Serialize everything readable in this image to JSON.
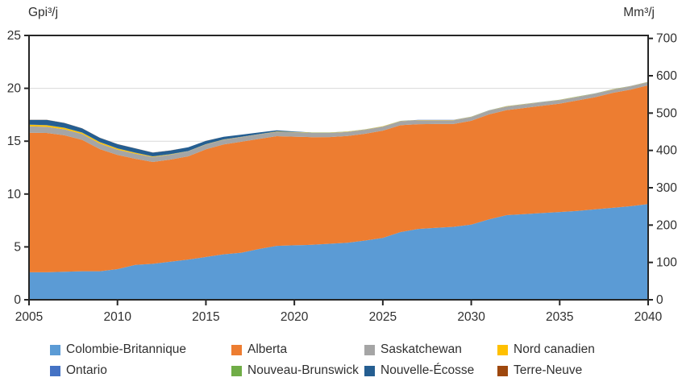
{
  "chart_data": {
    "type": "area",
    "stacked": true,
    "left_axis": {
      "label": "Gpi³/j",
      "min": 0,
      "max": 25,
      "ticks": [
        0,
        5,
        10,
        15,
        20,
        25
      ]
    },
    "right_axis": {
      "label": "Mm³/j",
      "min": 0,
      "ticks": [
        0,
        100,
        200,
        300,
        400,
        500,
        600,
        700
      ],
      "mm3_per_gpi3": 28.3168
    },
    "x": [
      2005,
      2006,
      2007,
      2008,
      2009,
      2010,
      2011,
      2012,
      2013,
      2014,
      2015,
      2016,
      2017,
      2018,
      2019,
      2020,
      2021,
      2022,
      2023,
      2024,
      2025,
      2026,
      2027,
      2028,
      2029,
      2030,
      2031,
      2032,
      2033,
      2034,
      2035,
      2036,
      2037,
      2038,
      2039,
      2040
    ],
    "x_ticks": [
      2005,
      2010,
      2015,
      2020,
      2025,
      2030,
      2035,
      2040
    ],
    "grid": "horizontal",
    "legend_position": "bottom",
    "legend_display_order": [
      0,
      4,
      1,
      5,
      2,
      6,
      3,
      7
    ],
    "series": [
      {
        "name": "Colombie-Britannique",
        "color": "#5B9BD5",
        "values": [
          2.6,
          2.6,
          2.65,
          2.7,
          2.7,
          2.9,
          3.3,
          3.4,
          3.6,
          3.8,
          4.05,
          4.3,
          4.45,
          4.8,
          5.1,
          5.15,
          5.2,
          5.3,
          5.4,
          5.6,
          5.85,
          6.4,
          6.7,
          6.8,
          6.9,
          7.1,
          7.6,
          8.0,
          8.1,
          8.2,
          8.3,
          8.4,
          8.55,
          8.7,
          8.85,
          9.05
        ]
      },
      {
        "name": "Alberta",
        "color": "#ED7D31",
        "values": [
          13.2,
          13.18,
          12.91,
          12.43,
          11.55,
          10.8,
          10.04,
          9.63,
          9.66,
          9.77,
          10.18,
          10.39,
          10.5,
          10.41,
          10.37,
          10.28,
          10.18,
          10.09,
          10.09,
          10.1,
          10.15,
          10.11,
          9.91,
          9.82,
          9.72,
          9.83,
          9.93,
          9.94,
          10.04,
          10.15,
          10.25,
          10.46,
          10.61,
          10.87,
          11.02,
          11.23
        ]
      },
      {
        "name": "Saskatchewan",
        "color": "#A5A5A5",
        "values": [
          0.6,
          0.58,
          0.56,
          0.55,
          0.53,
          0.5,
          0.48,
          0.47,
          0.46,
          0.46,
          0.45,
          0.44,
          0.43,
          0.42,
          0.41,
          0.4,
          0.4,
          0.39,
          0.39,
          0.38,
          0.38,
          0.37,
          0.37,
          0.36,
          0.36,
          0.35,
          0.35,
          0.34,
          0.34,
          0.33,
          0.33,
          0.32,
          0.32,
          0.31,
          0.31,
          0.3
        ]
      },
      {
        "name": "Nord canadien",
        "color": "#FFC000",
        "values": [
          0.15,
          0.14,
          0.13,
          0.12,
          0.12,
          0.1,
          0.08,
          0.05,
          0.03,
          0.02,
          0.02,
          0.02,
          0.02,
          0.02,
          0.02,
          0.02,
          0.02,
          0.02,
          0.02,
          0.02,
          0.02,
          0.02,
          0.02,
          0.02,
          0.02,
          0.02,
          0.02,
          0.02,
          0.02,
          0.02,
          0.02,
          0.02,
          0.02,
          0.02,
          0.02,
          0.02
        ]
      },
      {
        "name": "Ontario",
        "color": "#4472C4",
        "values": [
          0.01,
          0.01,
          0.01,
          0.01,
          0.01,
          0.01,
          0.01,
          0.01,
          0.01,
          0.01,
          0.01,
          0.01,
          0.01,
          0.01,
          0.01,
          0.01,
          0.01,
          0.01,
          0.01,
          0.01,
          0.01,
          0.01,
          0.01,
          0.01,
          0.01,
          0.01,
          0.01,
          0.01,
          0.01,
          0.01,
          0.01,
          0.01,
          0.01,
          0.01,
          0.01,
          0.01
        ]
      },
      {
        "name": "Nouveau-Brunswick",
        "color": "#70AD47",
        "values": [
          0.01,
          0.01,
          0.01,
          0.01,
          0.01,
          0.01,
          0.01,
          0.01,
          0.01,
          0.01,
          0.01,
          0.01,
          0.01,
          0.01,
          0.01,
          0.01,
          0.01,
          0.01,
          0.01,
          0.01,
          0.01,
          0.01,
          0.01,
          0.01,
          0.01,
          0.01,
          0.01,
          0.01,
          0.01,
          0.01,
          0.01,
          0.01,
          0.01,
          0.01,
          0.01,
          0.01
        ]
      },
      {
        "name": "Nouvelle-Écosse",
        "color": "#255E91",
        "values": [
          0.45,
          0.5,
          0.45,
          0.4,
          0.4,
          0.4,
          0.4,
          0.35,
          0.35,
          0.35,
          0.3,
          0.25,
          0.2,
          0.15,
          0.1,
          0.05,
          0,
          0,
          0,
          0,
          0,
          0,
          0,
          0,
          0,
          0,
          0,
          0,
          0,
          0,
          0,
          0,
          0,
          0,
          0,
          0
        ]
      },
      {
        "name": "Terre-Neuve",
        "color": "#9E480E",
        "values": [
          0.01,
          0.01,
          0.01,
          0.01,
          0.01,
          0.01,
          0.01,
          0.01,
          0.01,
          0.01,
          0.01,
          0,
          0,
          0,
          0,
          0,
          0,
          0,
          0,
          0,
          0,
          0,
          0,
          0,
          0,
          0,
          0,
          0,
          0,
          0,
          0,
          0,
          0,
          0,
          0,
          0
        ]
      }
    ],
    "colors": {
      "grid_line": "#d9d9d9",
      "axis_line": "#262626",
      "tick_text": "#303030"
    }
  }
}
